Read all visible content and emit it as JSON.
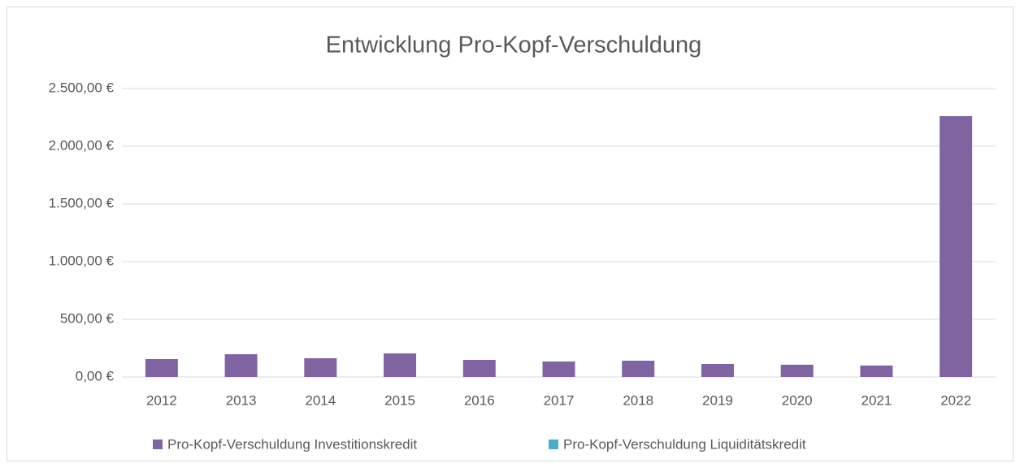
{
  "chart_data": {
    "type": "bar",
    "title": "Entwicklung Pro-Kopf-Verschuldung",
    "categories": [
      "2012",
      "2013",
      "2014",
      "2015",
      "2016",
      "2017",
      "2018",
      "2019",
      "2020",
      "2021",
      "2022"
    ],
    "series": [
      {
        "name": "Pro-Kopf-Verschuldung Investitionskredit",
        "color": "#8064a2",
        "values": [
          155,
          197,
          162,
          204,
          148,
          134,
          141,
          113,
          106,
          99,
          2261
        ]
      },
      {
        "name": "Pro-Kopf-Verschuldung Liquiditätskredit",
        "color": "#4bacc6",
        "values": [
          0,
          0,
          0,
          0,
          0,
          0,
          0,
          0,
          0,
          0,
          0
        ]
      }
    ],
    "ylim": [
      0,
      2500
    ],
    "yticks": [
      {
        "value": 0,
        "label": "0,00 €"
      },
      {
        "value": 500,
        "label": "500,00 €"
      },
      {
        "value": 1000,
        "label": "1.000,00 €"
      },
      {
        "value": 1500,
        "label": "1.500,00 €"
      },
      {
        "value": 2000,
        "label": "2.000,00 €"
      },
      {
        "value": 2500,
        "label": "2.500,00 €"
      }
    ],
    "grid": true,
    "legend": "bottom"
  }
}
